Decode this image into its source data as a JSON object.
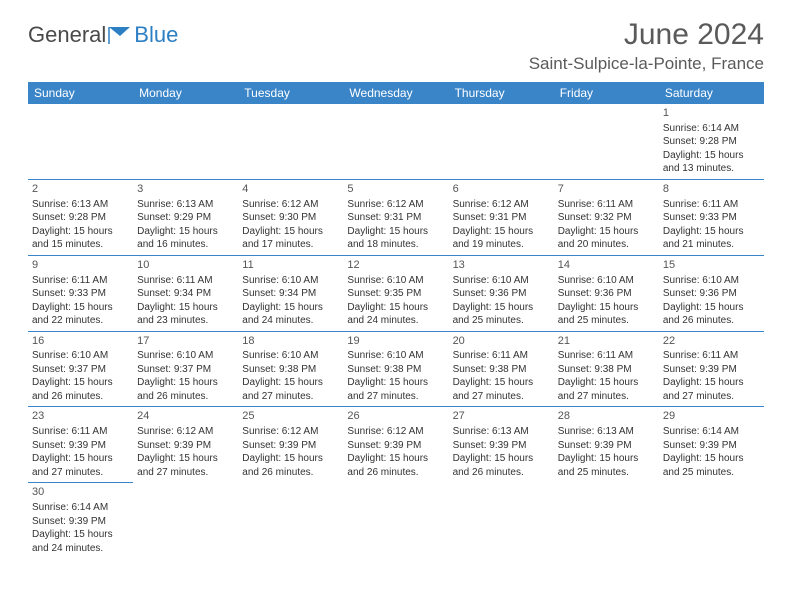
{
  "brand": {
    "name1": "General",
    "name2": "Blue"
  },
  "title": "June 2024",
  "location": "Saint-Sulpice-la-Pointe, France",
  "colors": {
    "header_bg": "#3a85c8",
    "header_text": "#ffffff",
    "cell_border": "#3a85c8",
    "text": "#333333",
    "brand_gray": "#4a4a4a",
    "brand_blue": "#2d7fc4"
  },
  "day_headers": [
    "Sunday",
    "Monday",
    "Tuesday",
    "Wednesday",
    "Thursday",
    "Friday",
    "Saturday"
  ],
  "weeks": [
    [
      null,
      null,
      null,
      null,
      null,
      null,
      {
        "d": "1",
        "sr": "6:14 AM",
        "ss": "9:28 PM",
        "dl": "15 hours and 13 minutes."
      }
    ],
    [
      {
        "d": "2",
        "sr": "6:13 AM",
        "ss": "9:28 PM",
        "dl": "15 hours and 15 minutes."
      },
      {
        "d": "3",
        "sr": "6:13 AM",
        "ss": "9:29 PM",
        "dl": "15 hours and 16 minutes."
      },
      {
        "d": "4",
        "sr": "6:12 AM",
        "ss": "9:30 PM",
        "dl": "15 hours and 17 minutes."
      },
      {
        "d": "5",
        "sr": "6:12 AM",
        "ss": "9:31 PM",
        "dl": "15 hours and 18 minutes."
      },
      {
        "d": "6",
        "sr": "6:12 AM",
        "ss": "9:31 PM",
        "dl": "15 hours and 19 minutes."
      },
      {
        "d": "7",
        "sr": "6:11 AM",
        "ss": "9:32 PM",
        "dl": "15 hours and 20 minutes."
      },
      {
        "d": "8",
        "sr": "6:11 AM",
        "ss": "9:33 PM",
        "dl": "15 hours and 21 minutes."
      }
    ],
    [
      {
        "d": "9",
        "sr": "6:11 AM",
        "ss": "9:33 PM",
        "dl": "15 hours and 22 minutes."
      },
      {
        "d": "10",
        "sr": "6:11 AM",
        "ss": "9:34 PM",
        "dl": "15 hours and 23 minutes."
      },
      {
        "d": "11",
        "sr": "6:10 AM",
        "ss": "9:34 PM",
        "dl": "15 hours and 24 minutes."
      },
      {
        "d": "12",
        "sr": "6:10 AM",
        "ss": "9:35 PM",
        "dl": "15 hours and 24 minutes."
      },
      {
        "d": "13",
        "sr": "6:10 AM",
        "ss": "9:36 PM",
        "dl": "15 hours and 25 minutes."
      },
      {
        "d": "14",
        "sr": "6:10 AM",
        "ss": "9:36 PM",
        "dl": "15 hours and 25 minutes."
      },
      {
        "d": "15",
        "sr": "6:10 AM",
        "ss": "9:36 PM",
        "dl": "15 hours and 26 minutes."
      }
    ],
    [
      {
        "d": "16",
        "sr": "6:10 AM",
        "ss": "9:37 PM",
        "dl": "15 hours and 26 minutes."
      },
      {
        "d": "17",
        "sr": "6:10 AM",
        "ss": "9:37 PM",
        "dl": "15 hours and 26 minutes."
      },
      {
        "d": "18",
        "sr": "6:10 AM",
        "ss": "9:38 PM",
        "dl": "15 hours and 27 minutes."
      },
      {
        "d": "19",
        "sr": "6:10 AM",
        "ss": "9:38 PM",
        "dl": "15 hours and 27 minutes."
      },
      {
        "d": "20",
        "sr": "6:11 AM",
        "ss": "9:38 PM",
        "dl": "15 hours and 27 minutes."
      },
      {
        "d": "21",
        "sr": "6:11 AM",
        "ss": "9:38 PM",
        "dl": "15 hours and 27 minutes."
      },
      {
        "d": "22",
        "sr": "6:11 AM",
        "ss": "9:39 PM",
        "dl": "15 hours and 27 minutes."
      }
    ],
    [
      {
        "d": "23",
        "sr": "6:11 AM",
        "ss": "9:39 PM",
        "dl": "15 hours and 27 minutes."
      },
      {
        "d": "24",
        "sr": "6:12 AM",
        "ss": "9:39 PM",
        "dl": "15 hours and 27 minutes."
      },
      {
        "d": "25",
        "sr": "6:12 AM",
        "ss": "9:39 PM",
        "dl": "15 hours and 26 minutes."
      },
      {
        "d": "26",
        "sr": "6:12 AM",
        "ss": "9:39 PM",
        "dl": "15 hours and 26 minutes."
      },
      {
        "d": "27",
        "sr": "6:13 AM",
        "ss": "9:39 PM",
        "dl": "15 hours and 26 minutes."
      },
      {
        "d": "28",
        "sr": "6:13 AM",
        "ss": "9:39 PM",
        "dl": "15 hours and 25 minutes."
      },
      {
        "d": "29",
        "sr": "6:14 AM",
        "ss": "9:39 PM",
        "dl": "15 hours and 25 minutes."
      }
    ],
    [
      {
        "d": "30",
        "sr": "6:14 AM",
        "ss": "9:39 PM",
        "dl": "15 hours and 24 minutes."
      },
      null,
      null,
      null,
      null,
      null,
      null
    ]
  ],
  "labels": {
    "sunrise": "Sunrise: ",
    "sunset": "Sunset: ",
    "daylight": "Daylight: "
  }
}
